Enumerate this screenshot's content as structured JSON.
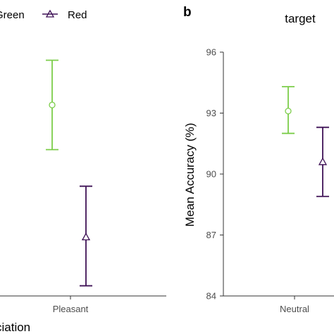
{
  "legend": {
    "items": [
      {
        "label": "Green",
        "color": "#7ccd4a",
        "marker": "circle"
      },
      {
        "label": "Red",
        "color": "#3f1256",
        "marker": "triangle"
      }
    ]
  },
  "colors": {
    "green": "#7ccd4a",
    "red": "#3f1256",
    "axis": "#333333",
    "tick_text": "#4d4d4d"
  },
  "chart_data": [
    {
      "type": "errorbar",
      "panel": "",
      "title": "",
      "xlabel": "ciation",
      "ylabel": "",
      "ylim": [
        84,
        96
      ],
      "categories": [
        "Pleasant"
      ],
      "series": [
        {
          "name": "Green",
          "color": "#7ccd4a",
          "marker": "circle",
          "points": [
            {
              "x": "Pleasant",
              "y": 93.4,
              "lower": 91.2,
              "upper": 95.6
            }
          ]
        },
        {
          "name": "Red",
          "color": "#3f1256",
          "marker": "triangle",
          "points": [
            {
              "x": "Pleasant",
              "y": 86.9,
              "lower": 84.5,
              "upper": 89.4
            }
          ]
        }
      ]
    },
    {
      "type": "errorbar",
      "panel": "b",
      "title": "target",
      "xlabel": "",
      "ylabel": "Mean Accuracy (%)",
      "ylim": [
        84,
        96
      ],
      "yticks": [
        "84",
        "87",
        "90",
        "93",
        "96"
      ],
      "categories": [
        "Neutral"
      ],
      "series": [
        {
          "name": "Green",
          "color": "#7ccd4a",
          "marker": "circle",
          "points": [
            {
              "x": "Neutral",
              "y": 93.1,
              "lower": 92.0,
              "upper": 94.3
            }
          ]
        },
        {
          "name": "Red",
          "color": "#3f1256",
          "marker": "triangle",
          "points": [
            {
              "x": "Neutral",
              "y": 90.6,
              "lower": 88.9,
              "upper": 92.3
            }
          ]
        }
      ]
    }
  ]
}
